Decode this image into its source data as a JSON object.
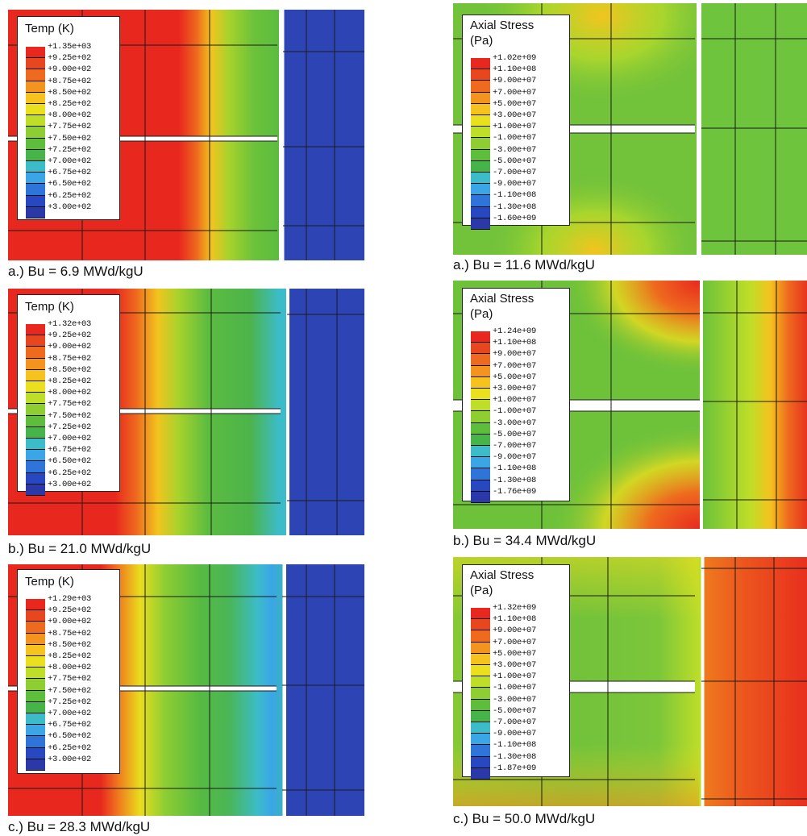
{
  "panels": [
    {
      "id": "temp_a",
      "caption": "a.) Bu = 6.9 MWd/kgU",
      "legend_title": [
        "Temp (K)"
      ],
      "ticks": [
        "+1.35e+03",
        "+9.25e+02",
        "+9.00e+02",
        "+8.75e+02",
        "+8.50e+02",
        "+8.25e+02",
        "+8.00e+02",
        "+7.75e+02",
        "+7.50e+02",
        "+7.25e+02",
        "+7.00e+02",
        "+6.75e+02",
        "+6.50e+02",
        "+6.25e+02",
        "+3.00e+02"
      ]
    },
    {
      "id": "temp_b",
      "caption": "b.) Bu = 21.0 MWd/kgU",
      "legend_title": [
        "Temp (K)"
      ],
      "ticks": [
        "+1.32e+03",
        "+9.25e+02",
        "+9.00e+02",
        "+8.75e+02",
        "+8.50e+02",
        "+8.25e+02",
        "+8.00e+02",
        "+7.75e+02",
        "+7.50e+02",
        "+7.25e+02",
        "+7.00e+02",
        "+6.75e+02",
        "+6.50e+02",
        "+6.25e+02",
        "+3.00e+02"
      ]
    },
    {
      "id": "temp_c",
      "caption": "c.) Bu = 28.3 MWd/kgU",
      "legend_title": [
        "Temp (K)"
      ],
      "ticks": [
        "+1.29e+03",
        "+9.25e+02",
        "+9.00e+02",
        "+8.75e+02",
        "+8.50e+02",
        "+8.25e+02",
        "+8.00e+02",
        "+7.75e+02",
        "+7.50e+02",
        "+7.25e+02",
        "+7.00e+02",
        "+6.75e+02",
        "+6.50e+02",
        "+6.25e+02",
        "+3.00e+02"
      ]
    },
    {
      "id": "stress_a",
      "caption": "a.) Bu = 11.6 MWd/kgU",
      "legend_title": [
        "Axial Stress",
        "(Pa)"
      ],
      "ticks": [
        "+1.02e+09",
        "+1.10e+08",
        "+9.00e+07",
        "+7.00e+07",
        "+5.00e+07",
        "+3.00e+07",
        "+1.00e+07",
        "-1.00e+07",
        "-3.00e+07",
        "-5.00e+07",
        "-7.00e+07",
        "-9.00e+07",
        "-1.10e+08",
        "-1.30e+08",
        "-1.60e+09"
      ]
    },
    {
      "id": "stress_b",
      "caption": "b.) Bu = 34.4 MWd/kgU",
      "legend_title": [
        "Axial Stress",
        "(Pa)"
      ],
      "ticks": [
        "+1.24e+09",
        "+1.10e+08",
        "+9.00e+07",
        "+7.00e+07",
        "+5.00e+07",
        "+3.00e+07",
        "+1.00e+07",
        "-1.00e+07",
        "-3.00e+07",
        "-5.00e+07",
        "-7.00e+07",
        "-9.00e+07",
        "-1.10e+08",
        "-1.30e+08",
        "-1.76e+09"
      ]
    },
    {
      "id": "stress_c",
      "caption": "c.) Bu = 50.0 MWd/kgU",
      "legend_title": [
        "Axial Stress",
        "(Pa)"
      ],
      "ticks": [
        "+1.32e+09",
        "+1.10e+08",
        "+9.00e+07",
        "+7.00e+07",
        "+5.00e+07",
        "+3.00e+07",
        "+1.00e+07",
        "-1.00e+07",
        "-3.00e+07",
        "-5.00e+07",
        "-7.00e+07",
        "-9.00e+07",
        "-1.10e+08",
        "-1.30e+08",
        "-1.87e+09"
      ]
    }
  ],
  "colormap": [
    "#e8281e",
    "#e8461e",
    "#ee6a1e",
    "#f2941e",
    "#f5c21e",
    "#eae01e",
    "#bede28",
    "#8ece32",
    "#5ebe3c",
    "#46b448",
    "#3cbcc8",
    "#3aa6e6",
    "#2f74d8",
    "#2848c2",
    "#2a38a8"
  ]
}
